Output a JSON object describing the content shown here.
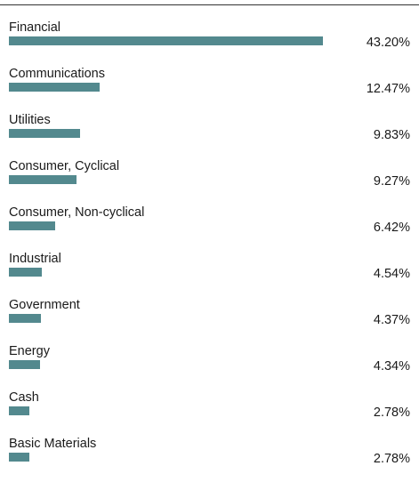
{
  "colors": {
    "bar": "#53898E",
    "text": "#1A1A1A",
    "rule": "#333333"
  },
  "chart_data": {
    "type": "bar",
    "orientation": "horizontal",
    "categories": [
      "Financial",
      "Communications",
      "Utilities",
      "Consumer, Cyclical",
      "Consumer, Non-cyclical",
      "Industrial",
      "Government",
      "Energy",
      "Cash",
      "Basic Materials"
    ],
    "values": [
      43.2,
      12.47,
      9.83,
      9.27,
      6.42,
      4.54,
      4.37,
      4.34,
      2.78,
      2.78
    ],
    "value_labels": [
      "43.20%",
      "12.47%",
      "9.83%",
      "9.27%",
      "6.42%",
      "4.54%",
      "4.37%",
      "4.34%",
      "2.78%",
      "2.78%"
    ],
    "xlim": [
      0,
      43.2
    ],
    "grid": false,
    "legend": "none"
  }
}
